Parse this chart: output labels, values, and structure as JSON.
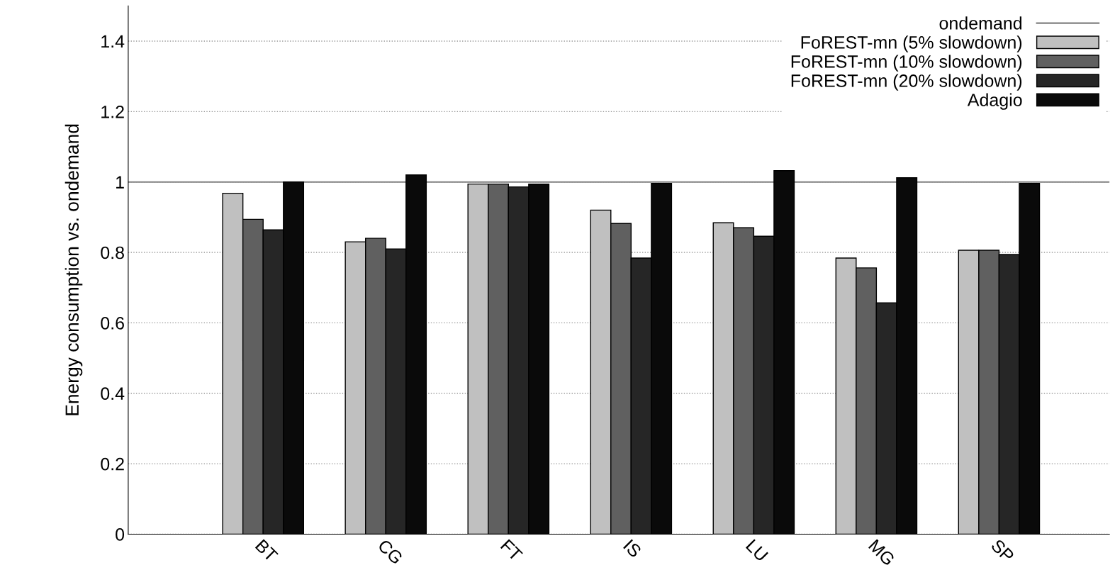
{
  "chart_data": {
    "type": "bar",
    "ylabel": "Energy consumption vs. ondemand",
    "categories": [
      "BT",
      "CG",
      "FT",
      "IS",
      "LU",
      "MG",
      "SP"
    ],
    "series": [
      {
        "name": "FoREST-mn (5% slowdown)",
        "color": "#c0c0c0",
        "values": [
          0.968,
          0.83,
          0.994,
          0.92,
          0.884,
          0.784,
          0.806
        ]
      },
      {
        "name": "FoREST-mn (10% slowdown)",
        "color": "#606060",
        "values": [
          0.894,
          0.84,
          0.994,
          0.882,
          0.87,
          0.756,
          0.806
        ]
      },
      {
        "name": "FoREST-mn (20% slowdown)",
        "color": "#262626",
        "values": [
          0.864,
          0.81,
          0.986,
          0.784,
          0.846,
          0.657,
          0.794
        ]
      },
      {
        "name": "Adagio",
        "color": "#0a0a0a",
        "values": [
          1.0,
          1.02,
          0.994,
          0.996,
          1.032,
          1.012,
          0.996
        ]
      }
    ],
    "ref_lines": [
      {
        "axis": "y",
        "value": 1,
        "label": "ondemand",
        "color": "#808080",
        "line_style": "solid"
      }
    ],
    "ylim": [
      0,
      1.5
    ],
    "yticks": [
      0,
      0.2,
      0.4,
      0.6,
      0.8,
      1,
      1.2,
      1.4
    ],
    "grid": "y",
    "legend": "top right"
  }
}
